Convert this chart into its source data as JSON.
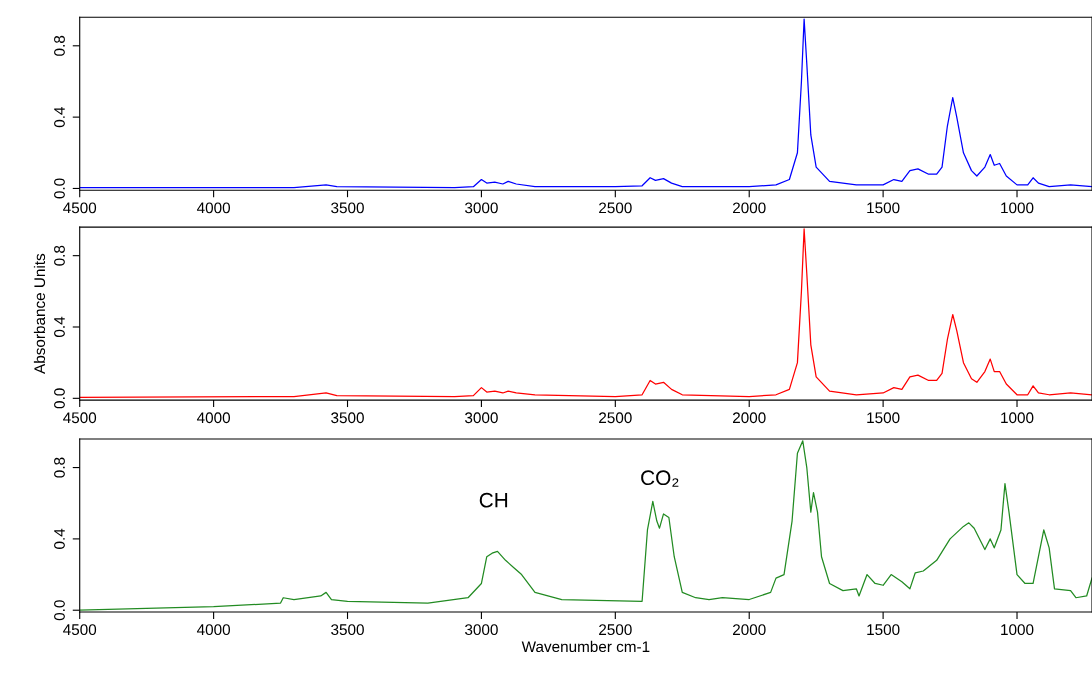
{
  "chart_data": [
    {
      "type": "line",
      "xlim": [
        4500,
        720
      ],
      "ylim": [
        -0.01,
        0.96
      ],
      "xticks": [
        4500,
        4000,
        3500,
        3000,
        2500,
        2000,
        1500,
        1000
      ],
      "yticks": [
        {
          "value": 0,
          "label": "0.0"
        },
        {
          "value": 0.4,
          "label": "0.4"
        },
        {
          "value": 0.8,
          "label": "0.8"
        }
      ],
      "x": [
        4500,
        3700,
        3580,
        3540,
        3100,
        3030,
        3000,
        2980,
        2950,
        2920,
        2900,
        2870,
        2800,
        2500,
        2400,
        2370,
        2350,
        2320,
        2290,
        2250,
        2000,
        1900,
        1850,
        1820,
        1805,
        1795,
        1785,
        1770,
        1750,
        1700,
        1600,
        1500,
        1460,
        1430,
        1400,
        1370,
        1330,
        1300,
        1280,
        1260,
        1240,
        1225,
        1200,
        1170,
        1150,
        1120,
        1100,
        1085,
        1065,
        1040,
        1000,
        960,
        940,
        920,
        880,
        800,
        720
      ],
      "series": [
        {
          "color": "#0000ff",
          "values": [
            0.005,
            0.005,
            0.02,
            0.01,
            0.005,
            0.01,
            0.05,
            0.03,
            0.035,
            0.025,
            0.04,
            0.025,
            0.01,
            0.01,
            0.015,
            0.06,
            0.045,
            0.055,
            0.03,
            0.01,
            0.01,
            0.02,
            0.05,
            0.2,
            0.6,
            0.95,
            0.7,
            0.3,
            0.12,
            0.04,
            0.02,
            0.02,
            0.05,
            0.04,
            0.1,
            0.11,
            0.08,
            0.08,
            0.12,
            0.35,
            0.51,
            0.4,
            0.2,
            0.1,
            0.07,
            0.12,
            0.19,
            0.13,
            0.14,
            0.07,
            0.02,
            0.02,
            0.06,
            0.03,
            0.01,
            0.02,
            0.01
          ]
        }
      ]
    },
    {
      "type": "line",
      "xlim": [
        4500,
        720
      ],
      "ylim": [
        -0.01,
        0.96
      ],
      "ylabel": "Absorbance Units",
      "xticks": [
        4500,
        4000,
        3500,
        3000,
        2500,
        2000,
        1500,
        1000
      ],
      "yticks": [
        {
          "value": 0,
          "label": "0.0"
        },
        {
          "value": 0.4,
          "label": "0.4"
        },
        {
          "value": 0.8,
          "label": "0.8"
        }
      ],
      "x": [
        4500,
        3700,
        3580,
        3540,
        3100,
        3030,
        3000,
        2980,
        2950,
        2920,
        2900,
        2870,
        2800,
        2500,
        2400,
        2370,
        2350,
        2320,
        2290,
        2250,
        2000,
        1900,
        1850,
        1820,
        1805,
        1795,
        1785,
        1770,
        1750,
        1700,
        1600,
        1500,
        1460,
        1430,
        1400,
        1370,
        1330,
        1300,
        1280,
        1260,
        1240,
        1225,
        1200,
        1170,
        1150,
        1120,
        1100,
        1085,
        1065,
        1040,
        1000,
        960,
        940,
        920,
        880,
        800,
        720
      ],
      "series": [
        {
          "color": "#ff0000",
          "values": [
            0.005,
            0.01,
            0.03,
            0.015,
            0.01,
            0.015,
            0.06,
            0.035,
            0.04,
            0.03,
            0.04,
            0.03,
            0.02,
            0.01,
            0.02,
            0.1,
            0.08,
            0.09,
            0.05,
            0.02,
            0.01,
            0.02,
            0.05,
            0.2,
            0.6,
            0.95,
            0.7,
            0.3,
            0.12,
            0.04,
            0.02,
            0.03,
            0.06,
            0.05,
            0.12,
            0.13,
            0.1,
            0.1,
            0.14,
            0.33,
            0.47,
            0.38,
            0.2,
            0.11,
            0.09,
            0.15,
            0.22,
            0.15,
            0.15,
            0.08,
            0.02,
            0.02,
            0.07,
            0.03,
            0.02,
            0.03,
            0.02
          ]
        }
      ]
    },
    {
      "type": "line",
      "xlim": [
        4500,
        720
      ],
      "ylim": [
        -0.01,
        0.96
      ],
      "xlabel": "Wavenumber cm-1",
      "xticks": [
        4500,
        4000,
        3500,
        3000,
        2500,
        2000,
        1500,
        1000
      ],
      "yticks": [
        {
          "value": 0,
          "label": "0.0"
        },
        {
          "value": 0.4,
          "label": "0.4"
        },
        {
          "value": 0.8,
          "label": "0.8"
        }
      ],
      "annotations": [
        "CH",
        "CO₂"
      ],
      "x": [
        4500,
        4000,
        3750,
        3740,
        3700,
        3600,
        3580,
        3560,
        3500,
        3200,
        3050,
        3000,
        2980,
        2960,
        2940,
        2910,
        2880,
        2850,
        2800,
        2700,
        2400,
        2380,
        2360,
        2345,
        2335,
        2320,
        2300,
        2280,
        2250,
        2200,
        2150,
        2100,
        2000,
        1920,
        1900,
        1870,
        1840,
        1820,
        1800,
        1785,
        1770,
        1760,
        1745,
        1730,
        1700,
        1650,
        1600,
        1590,
        1560,
        1530,
        1500,
        1470,
        1430,
        1400,
        1380,
        1350,
        1300,
        1250,
        1200,
        1180,
        1160,
        1120,
        1100,
        1085,
        1060,
        1045,
        1030,
        1000,
        970,
        940,
        920,
        900,
        880,
        860,
        800,
        780,
        740,
        720
      ],
      "series": [
        {
          "color": "#228b22",
          "values": [
            0.0,
            0.02,
            0.04,
            0.07,
            0.06,
            0.08,
            0.1,
            0.06,
            0.05,
            0.04,
            0.07,
            0.15,
            0.3,
            0.32,
            0.33,
            0.28,
            0.24,
            0.2,
            0.1,
            0.06,
            0.05,
            0.45,
            0.61,
            0.5,
            0.46,
            0.54,
            0.52,
            0.3,
            0.1,
            0.07,
            0.06,
            0.07,
            0.06,
            0.1,
            0.18,
            0.2,
            0.5,
            0.88,
            0.95,
            0.8,
            0.55,
            0.66,
            0.55,
            0.3,
            0.15,
            0.11,
            0.12,
            0.08,
            0.2,
            0.15,
            0.14,
            0.2,
            0.16,
            0.12,
            0.21,
            0.22,
            0.28,
            0.4,
            0.47,
            0.49,
            0.46,
            0.34,
            0.4,
            0.35,
            0.45,
            0.71,
            0.55,
            0.2,
            0.15,
            0.15,
            0.3,
            0.45,
            0.35,
            0.12,
            0.11,
            0.07,
            0.08,
            0.18
          ]
        }
      ]
    }
  ]
}
